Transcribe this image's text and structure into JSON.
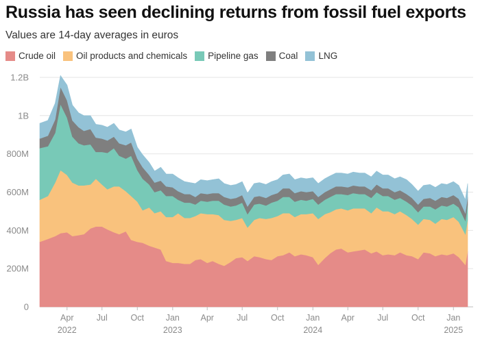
{
  "title": "Russia has seen declining returns from fossil fuel exports",
  "subtitle": "Values are 14-day averages in euros",
  "chart_data": {
    "type": "area",
    "stacked": true,
    "unit": "euros",
    "ylim": [
      0,
      1250000000
    ],
    "y_ticks": [
      {
        "value": 0,
        "label": "0"
      },
      {
        "value": 200000000,
        "label": "200M"
      },
      {
        "value": 400000000,
        "label": "400M"
      },
      {
        "value": 600000000,
        "label": "600M"
      },
      {
        "value": 800000000,
        "label": "800M"
      },
      {
        "value": 1000000000,
        "label": "1B"
      },
      {
        "value": 1200000000,
        "label": "1.2B"
      }
    ],
    "x_range": [
      "2022-01-20",
      "2025-02-07"
    ],
    "x_ticks": [
      {
        "date": "2022-04-01",
        "label": "Apr",
        "year": "2022"
      },
      {
        "date": "2022-07-01",
        "label": "Jul",
        "year": ""
      },
      {
        "date": "2022-10-01",
        "label": "Oct",
        "year": ""
      },
      {
        "date": "2023-01-01",
        "label": "Jan",
        "year": "2023"
      },
      {
        "date": "2023-04-01",
        "label": "Apr",
        "year": ""
      },
      {
        "date": "2023-07-01",
        "label": "Jul",
        "year": ""
      },
      {
        "date": "2023-10-01",
        "label": "Oct",
        "year": ""
      },
      {
        "date": "2024-01-01",
        "label": "Jan",
        "year": "2024"
      },
      {
        "date": "2024-04-01",
        "label": "Apr",
        "year": ""
      },
      {
        "date": "2024-07-01",
        "label": "Jul",
        "year": ""
      },
      {
        "date": "2024-10-01",
        "label": "Oct",
        "year": ""
      },
      {
        "date": "2025-01-01",
        "label": "Jan",
        "year": "2025"
      }
    ],
    "grid": true,
    "legend_position": "top-left",
    "x": [
      "2022-01-20",
      "2022-02-10",
      "2022-03-01",
      "2022-03-15",
      "2022-04-01",
      "2022-04-15",
      "2022-05-01",
      "2022-05-15",
      "2022-06-01",
      "2022-06-15",
      "2022-07-01",
      "2022-07-15",
      "2022-08-01",
      "2022-08-15",
      "2022-09-01",
      "2022-09-15",
      "2022-10-01",
      "2022-10-15",
      "2022-11-01",
      "2022-11-15",
      "2022-12-01",
      "2022-12-15",
      "2023-01-01",
      "2023-01-15",
      "2023-02-01",
      "2023-02-15",
      "2023-03-01",
      "2023-03-15",
      "2023-04-01",
      "2023-04-15",
      "2023-05-01",
      "2023-05-15",
      "2023-06-01",
      "2023-06-15",
      "2023-07-01",
      "2023-07-15",
      "2023-08-01",
      "2023-08-15",
      "2023-09-01",
      "2023-09-15",
      "2023-10-01",
      "2023-10-15",
      "2023-11-01",
      "2023-11-15",
      "2023-12-01",
      "2023-12-15",
      "2024-01-01",
      "2024-01-15",
      "2024-02-01",
      "2024-02-15",
      "2024-03-01",
      "2024-03-15",
      "2024-04-01",
      "2024-04-15",
      "2024-05-01",
      "2024-05-15",
      "2024-06-01",
      "2024-06-15",
      "2024-07-01",
      "2024-07-15",
      "2024-08-01",
      "2024-08-15",
      "2024-09-01",
      "2024-09-15",
      "2024-10-01",
      "2024-10-15",
      "2024-11-01",
      "2024-11-15",
      "2024-12-01",
      "2024-12-15",
      "2025-01-01",
      "2025-01-15",
      "2025-02-01",
      "2025-02-07"
    ],
    "series": [
      {
        "name": "Crude oil",
        "color": "#e58b88",
        "values": [
          340,
          355,
          370,
          385,
          390,
          370,
          375,
          380,
          410,
          420,
          420,
          405,
          390,
          380,
          395,
          350,
          340,
          335,
          320,
          310,
          300,
          240,
          230,
          230,
          225,
          225,
          245,
          250,
          230,
          240,
          225,
          215,
          235,
          255,
          260,
          240,
          265,
          260,
          250,
          245,
          265,
          270,
          285,
          265,
          275,
          270,
          260,
          220,
          255,
          280,
          300,
          305,
          285,
          290,
          295,
          300,
          280,
          290,
          270,
          275,
          270,
          285,
          270,
          265,
          250,
          285,
          280,
          265,
          275,
          270,
          280,
          260,
          220,
          290
        ]
      },
      {
        "name": "Oil products and chemicals",
        "color": "#f9c27d",
        "values": [
          220,
          225,
          280,
          330,
          300,
          280,
          260,
          255,
          230,
          250,
          220,
          210,
          240,
          250,
          210,
          230,
          210,
          170,
          200,
          180,
          200,
          230,
          240,
          260,
          240,
          240,
          230,
          240,
          255,
          245,
          255,
          240,
          215,
          200,
          205,
          175,
          190,
          205,
          210,
          220,
          210,
          220,
          205,
          205,
          210,
          215,
          230,
          240,
          230,
          215,
          210,
          210,
          220,
          225,
          220,
          215,
          210,
          230,
          230,
          225,
          215,
          215,
          210,
          195,
          180,
          175,
          175,
          170,
          185,
          185,
          190,
          185,
          160,
          165
        ]
      },
      {
        "name": "Pipeline gas",
        "color": "#78c9b7",
        "values": [
          270,
          260,
          260,
          345,
          300,
          240,
          220,
          210,
          210,
          140,
          170,
          190,
          200,
          160,
          170,
          210,
          165,
          165,
          120,
          110,
          110,
          110,
          110,
          70,
          80,
          80,
          60,
          65,
          65,
          70,
          75,
          80,
          75,
          75,
          80,
          70,
          80,
          75,
          70,
          80,
          80,
          85,
          85,
          80,
          75,
          70,
          75,
          75,
          75,
          80,
          80,
          75,
          80,
          80,
          75,
          75,
          80,
          80,
          80,
          80,
          75,
          70,
          70,
          70,
          65,
          65,
          70,
          75,
          70,
          70,
          70,
          75,
          70,
          80
        ]
      },
      {
        "name": "Coal",
        "color": "#7f7f7f",
        "values": [
          50,
          55,
          70,
          90,
          90,
          85,
          85,
          75,
          80,
          75,
          70,
          65,
          60,
          65,
          70,
          70,
          60,
          60,
          50,
          50,
          50,
          50,
          45,
          45,
          45,
          45,
          40,
          40,
          40,
          40,
          40,
          40,
          40,
          40,
          40,
          40,
          40,
          40,
          40,
          40,
          40,
          45,
          45,
          45,
          45,
          45,
          40,
          40,
          40,
          40,
          40,
          40,
          40,
          40,
          40,
          40,
          40,
          40,
          40,
          40,
          40,
          40,
          40,
          40,
          40,
          40,
          45,
          45,
          45,
          45,
          45,
          45,
          40,
          40
        ]
      },
      {
        "name": "LNG",
        "color": "#93c2d6",
        "values": [
          80,
          80,
          85,
          60,
          80,
          80,
          75,
          80,
          70,
          70,
          70,
          70,
          70,
          70,
          70,
          70,
          60,
          65,
          65,
          60,
          70,
          65,
          70,
          70,
          65,
          60,
          70,
          70,
          70,
          70,
          75,
          70,
          70,
          70,
          70,
          70,
          70,
          70,
          70,
          70,
          70,
          70,
          75,
          70,
          70,
          70,
          70,
          70,
          70,
          70,
          70,
          70,
          70,
          70,
          70,
          70,
          70,
          70,
          70,
          70,
          70,
          70,
          75,
          70,
          70,
          70,
          70,
          70,
          70,
          70,
          70,
          70,
          70,
          70
        ]
      }
    ]
  }
}
